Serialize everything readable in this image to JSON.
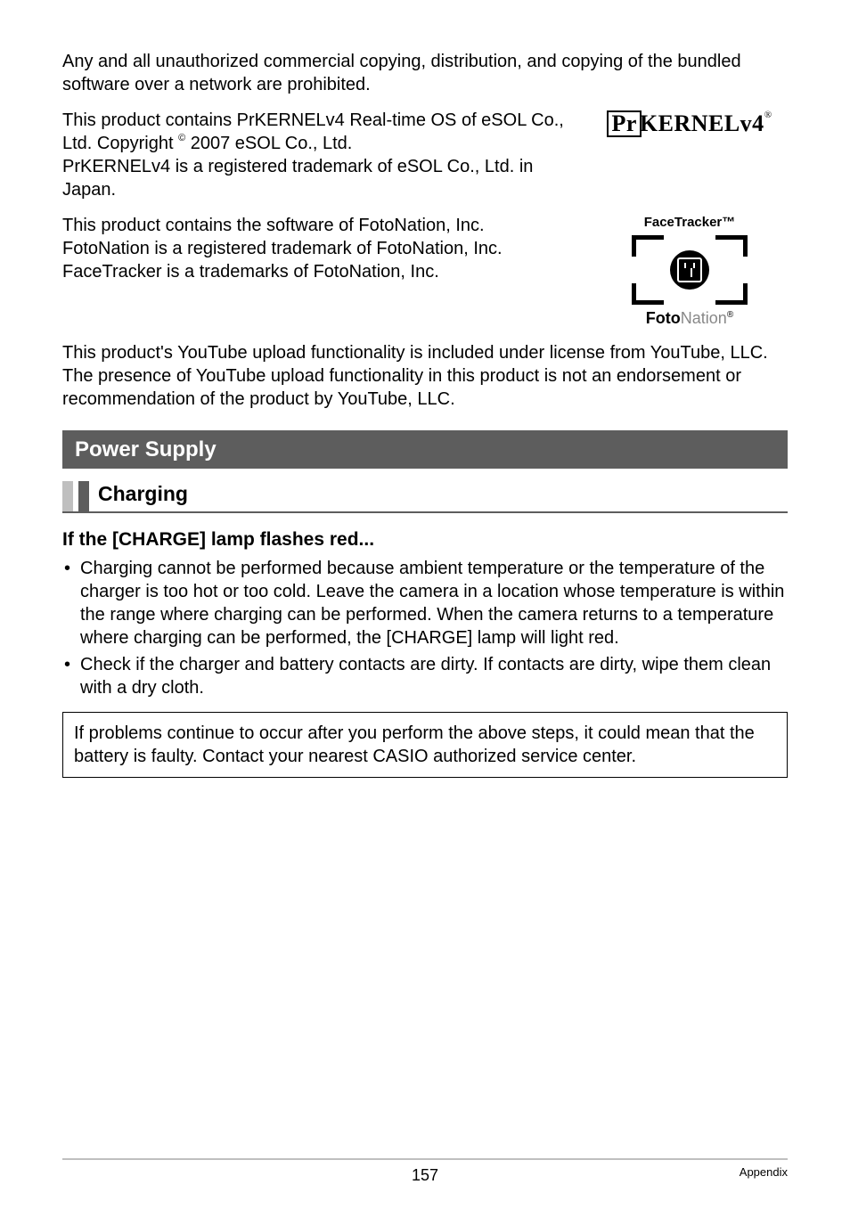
{
  "intro": {
    "para1": "Any and all unauthorized commercial copying, distribution, and copying of the bundled software over a network are prohibited.",
    "prkernel_line1": "This product contains PrKERNELv4 Real-time OS of eSOL Co., Ltd. Copyright ",
    "prkernel_copy_symbol": "©",
    "prkernel_line1b": " 2007 eSOL Co., Ltd.",
    "prkernel_line2": "PrKERNELv4 is a registered trademark of eSOL Co., Ltd. in Japan.",
    "prkernel_logo_pr": "Pr",
    "prkernel_logo_rest": "KERNELv4",
    "prkernel_logo_reg": "®",
    "foto_para_l1": "This product contains the software of FotoNation, Inc.",
    "foto_para_l2": "FotoNation is a registered trademark of FotoNation, Inc.",
    "foto_para_l3": "FaceTracker is a trademarks of FotoNation, Inc.",
    "facetracker_label": "FaceTracker™",
    "fotonation_bold": "Foto",
    "fotonation_light": "Nation",
    "fotonation_reg": "®",
    "youtube_para": "This product's YouTube upload functionality is included under license from YouTube, LLC. The presence of YouTube upload functionality in this product is not an endorsement or recommendation of the product by YouTube, LLC."
  },
  "section": {
    "title": "Power Supply",
    "sub": "Charging",
    "q": "If the [CHARGE] lamp flashes red...",
    "bullet1": "Charging cannot be performed because ambient temperature or the temperature of the charger is too hot or too cold. Leave the camera in a location whose temperature is within the range where charging can be performed. When the camera returns to a temperature where charging can be performed, the [CHARGE] lamp will light red.",
    "bullet2": "Check if the charger and battery contacts are dirty. If contacts are dirty, wipe them clean with a dry cloth.",
    "note": "If problems continue to occur after you perform the above steps, it could mean that the battery is faulty. Contact your nearest CASIO authorized service center."
  },
  "footer": {
    "page": "157",
    "section": "Appendix"
  },
  "colors": {
    "section_bg": "#5d5d5d",
    "stripe_light": "#bfbfbf"
  }
}
